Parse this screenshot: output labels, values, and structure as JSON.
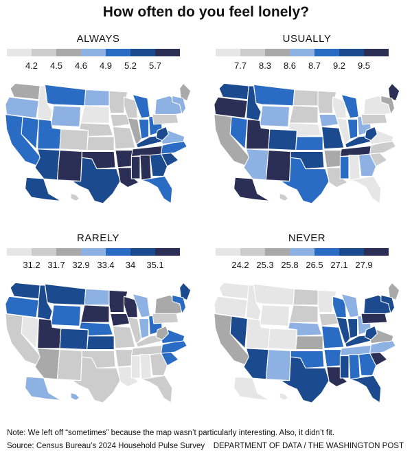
{
  "title": "How often do you feel lonely?",
  "colors": [
    "#e6e6e6",
    "#cccccc",
    "#a9a9a9",
    "#8eb1e3",
    "#2a6bc4",
    "#1c4a8f",
    "#2b2f55"
  ],
  "panels": [
    {
      "label": "ALWAYS",
      "ticks": [
        "4.2",
        "4.5",
        "4.6",
        "4.9",
        "5.2",
        "5.7"
      ],
      "states": {
        "WA": 2,
        "OR": 3,
        "CA": 4,
        "NV": 4,
        "ID": 0,
        "MT": 4,
        "WY": 3,
        "UT": 4,
        "AZ": 5,
        "CO": 1,
        "NM": 6,
        "ND": 3,
        "SD": 0,
        "NE": 1,
        "KS": 1,
        "OK": 6,
        "TX": 5,
        "MN": 1,
        "IA": 1,
        "MO": 1,
        "AR": 6,
        "LA": 6,
        "WI": 1,
        "IL": 2,
        "MI": 4,
        "IN": 4,
        "OH": 4,
        "KY": 5,
        "TN": 6,
        "MS": 6,
        "AL": 6,
        "GA": 5,
        "FL": 4,
        "SC": 5,
        "NC": 4,
        "VA": 3,
        "WV": 5,
        "PA": 1,
        "NY": 3,
        "ME": 2,
        "NE_REG": 3,
        "AK": 5,
        "HI": 1
      }
    },
    {
      "label": "USUALLY",
      "ticks": [
        "7.7",
        "8.3",
        "8.6",
        "8.7",
        "9.2",
        "9.5"
      ],
      "states": {
        "WA": 5,
        "OR": 6,
        "CA": 2,
        "NV": 4,
        "ID": 5,
        "MT": 4,
        "WY": 3,
        "UT": 6,
        "AZ": 3,
        "CO": 5,
        "NM": 6,
        "ND": 1,
        "SD": 1,
        "NE": 0,
        "KS": 4,
        "OK": 5,
        "TX": 4,
        "MN": 1,
        "IA": 3,
        "MO": 5,
        "AR": 2,
        "LA": 1,
        "WI": 0,
        "IL": 0,
        "MI": 4,
        "IN": 4,
        "OH": 3,
        "KY": 5,
        "TN": 6,
        "MS": 4,
        "AL": 0,
        "GA": 3,
        "FL": 0,
        "SC": 1,
        "NC": 1,
        "VA": 0,
        "WV": 5,
        "PA": 1,
        "NY": 0,
        "ME": 6,
        "NE_REG": 2,
        "AK": 6,
        "HI": 1
      }
    },
    {
      "label": "RARELY",
      "ticks": [
        "31.2",
        "31.7",
        "32.9",
        "33.4",
        "34",
        "35.1"
      ],
      "states": {
        "WA": 5,
        "OR": 4,
        "CA": 1,
        "NV": 0,
        "ID": 5,
        "MT": 5,
        "WY": 4,
        "UT": 6,
        "AZ": 2,
        "CO": 5,
        "NM": 1,
        "ND": 3,
        "SD": 6,
        "NE": 4,
        "KS": 5,
        "OK": 1,
        "TX": 1,
        "MN": 6,
        "IA": 6,
        "MO": 1,
        "AR": 1,
        "LA": 0,
        "WI": 6,
        "IL": 1,
        "MI": 3,
        "IN": 3,
        "OH": 4,
        "KY": 1,
        "TN": 1,
        "MS": 0,
        "AL": 0,
        "GA": 1,
        "FL": 1,
        "SC": 4,
        "NC": 4,
        "VA": 4,
        "WV": 2,
        "PA": 1,
        "NY": 2,
        "ME": 5,
        "NE_REG": 4,
        "AK": 3,
        "HI": 3
      }
    },
    {
      "label": "NEVER",
      "ticks": [
        "24.2",
        "25.3",
        "25.8",
        "26.5",
        "27.1",
        "27.9"
      ],
      "states": {
        "WA": 0,
        "OR": 0,
        "CA": 2,
        "NV": 5,
        "ID": 0,
        "MT": 0,
        "WY": 0,
        "UT": 0,
        "AZ": 5,
        "CO": 0,
        "NM": 3,
        "ND": 1,
        "SD": 1,
        "NE": 3,
        "KS": 2,
        "OK": 4,
        "TX": 5,
        "MN": 0,
        "IA": 1,
        "MO": 4,
        "AR": 4,
        "LA": 6,
        "WI": 4,
        "IL": 5,
        "MI": 3,
        "IN": 5,
        "OH": 3,
        "KY": 5,
        "TN": 3,
        "MS": 5,
        "AL": 4,
        "GA": 4,
        "FL": 5,
        "SC": 6,
        "NC": 3,
        "VA": 2,
        "WV": 5,
        "PA": 6,
        "NY": 5,
        "ME": 2,
        "NE_REG": 5,
        "AK": 0,
        "HI": 0
      }
    }
  ],
  "note": "Note: We left off “sometimes” because the map wasn’t particularly interesting. Also, it didn’t fit.",
  "source": "Source: Census Bureau’s 2024 Household Pulse Survey",
  "credit": "DEPARTMENT OF DATA / THE WASHINGTON POST"
}
